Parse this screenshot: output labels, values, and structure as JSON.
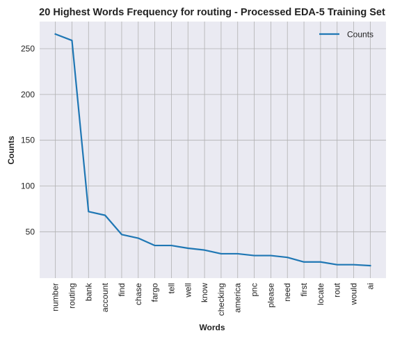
{
  "chart_data": {
    "type": "line",
    "title": "20 Highest Words Frequency for routing - Processed EDA-5 Training Set",
    "xlabel": "Words",
    "ylabel": "Counts",
    "categories": [
      "number",
      "routing",
      "bank",
      "account",
      "find",
      "chase",
      "fargo",
      "tell",
      "well",
      "know",
      "checking",
      "america",
      "pnc",
      "please",
      "need",
      "first",
      "locate",
      "rout",
      "would",
      "ai"
    ],
    "series": [
      {
        "name": "Counts",
        "values": [
          266,
          259,
          72,
          68,
          47,
          43,
          35,
          35,
          32,
          30,
          26,
          26,
          24,
          24,
          22,
          17,
          17,
          14,
          14,
          13
        ],
        "color": "#1f77b4"
      }
    ],
    "yticks": [
      50,
      100,
      150,
      200,
      250
    ],
    "ylim": [
      -0.65,
      279.65
    ],
    "grid": true,
    "legend_position": "top-right",
    "background": "#eaeaf2",
    "grid_color": "#b0b0b0"
  }
}
